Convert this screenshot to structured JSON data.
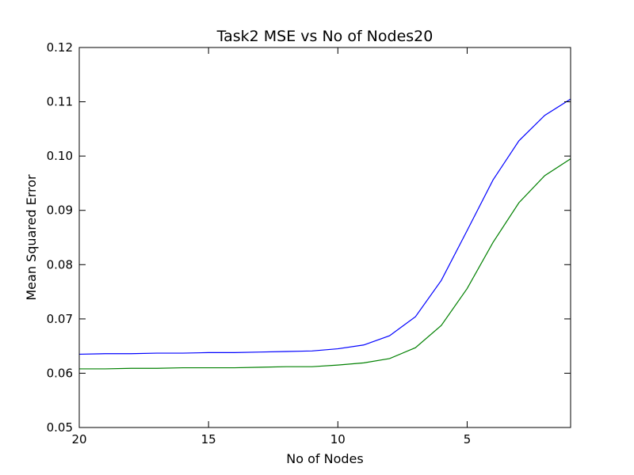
{
  "chart_data": {
    "type": "line",
    "title": "Task2 MSE vs No of Nodes20",
    "xlabel": "No of Nodes",
    "ylabel": "Mean Squared Error",
    "xlim": [
      20,
      1
    ],
    "ylim": [
      0.05,
      0.12
    ],
    "x_reversed": true,
    "grid": false,
    "legend": "none",
    "xticks": [
      20,
      15,
      10,
      5
    ],
    "xtick_labels": [
      "20",
      "15",
      "10",
      "5"
    ],
    "yticks": [
      0.05,
      0.06,
      0.07,
      0.08,
      0.09,
      0.1,
      0.11,
      0.12
    ],
    "ytick_labels": [
      "0.05",
      "0.06",
      "0.07",
      "0.08",
      "0.09",
      "0.10",
      "0.11",
      "0.12"
    ],
    "x": [
      20,
      19,
      18,
      17,
      16,
      15,
      14,
      13,
      12,
      11,
      10,
      9,
      8,
      7,
      6,
      5,
      4,
      3,
      2,
      1
    ],
    "series": [
      {
        "color": "#0000ff",
        "values": [
          0.0635,
          0.0636,
          0.0636,
          0.0637,
          0.0637,
          0.0638,
          0.0638,
          0.0639,
          0.064,
          0.0641,
          0.0645,
          0.0652,
          0.0669,
          0.0704,
          0.0771,
          0.0863,
          0.0956,
          0.1028,
          0.1075,
          0.1105
        ]
      },
      {
        "color": "#008000",
        "values": [
          0.0608,
          0.0608,
          0.0609,
          0.0609,
          0.061,
          0.061,
          0.061,
          0.0611,
          0.0612,
          0.0612,
          0.0615,
          0.0619,
          0.0627,
          0.0647,
          0.0688,
          0.0756,
          0.0841,
          0.0914,
          0.0964,
          0.0995
        ]
      }
    ]
  }
}
